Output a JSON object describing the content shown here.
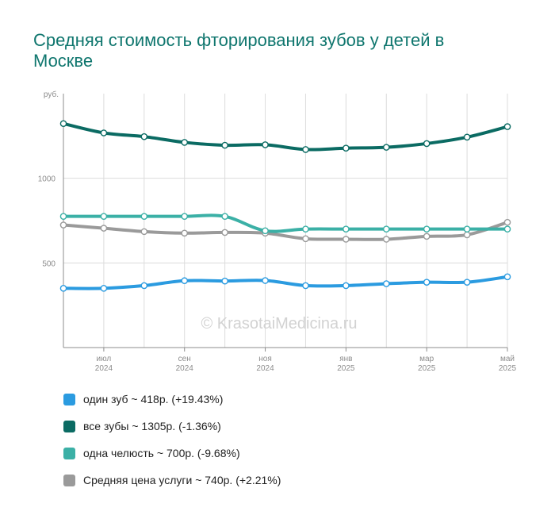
{
  "title": "Средняя стоимость фторирования зубов у детей в Москве",
  "watermark": "© KrasotaiMedicina.ru",
  "chart_data": {
    "type": "line",
    "ylabel": "руб.",
    "ylim": [
      0,
      1500
    ],
    "yticks": [
      {
        "value": 500,
        "label": "500"
      },
      {
        "value": 1000,
        "label": "1000"
      }
    ],
    "x": [
      "2024-06",
      "2024-07",
      "2024-08",
      "2024-09",
      "2024-10",
      "2024-11",
      "2024-12",
      "2025-01",
      "2025-02",
      "2025-03",
      "2025-04",
      "2025-05"
    ],
    "xticks": [
      {
        "x": "2024-07",
        "month": "июл",
        "year": "2024"
      },
      {
        "x": "2024-09",
        "month": "сен",
        "year": "2024"
      },
      {
        "x": "2024-11",
        "month": "ноя",
        "year": "2024"
      },
      {
        "x": "2025-01",
        "month": "янв",
        "year": "2025"
      },
      {
        "x": "2025-03",
        "month": "мар",
        "year": "2025"
      },
      {
        "x": "2025-05",
        "month": "май",
        "year": "2025"
      }
    ],
    "grid": true,
    "legend_position": "bottom",
    "series": [
      {
        "name": "один зуб",
        "color": "#2b9be0",
        "values": [
          350,
          350,
          366,
          395,
          393,
          396,
          366,
          366,
          377,
          386,
          386,
          418
        ],
        "legend": "один зуб ~ 418р. (+19.43%)"
      },
      {
        "name": "все зубы",
        "color": "#0b6b63",
        "values": [
          1323,
          1268,
          1246,
          1212,
          1195,
          1198,
          1170,
          1178,
          1183,
          1205,
          1243,
          1305
        ],
        "legend": "все зубы ~ 1305р. (-1.36%)"
      },
      {
        "name": "одна челюсть",
        "color": "#3bb0a6",
        "values": [
          775,
          775,
          775,
          775,
          775,
          690,
          700,
          700,
          700,
          700,
          700,
          700
        ],
        "legend": "одна челюсть ~ 700р. (-9.68%)"
      },
      {
        "name": "Средняя цена услуги",
        "color": "#9a9a9a",
        "values": [
          724,
          705,
          685,
          676,
          680,
          676,
          643,
          640,
          640,
          657,
          666,
          740
        ],
        "legend": "Средняя цена услуги ~ 740р. (+2.21%)"
      }
    ]
  }
}
